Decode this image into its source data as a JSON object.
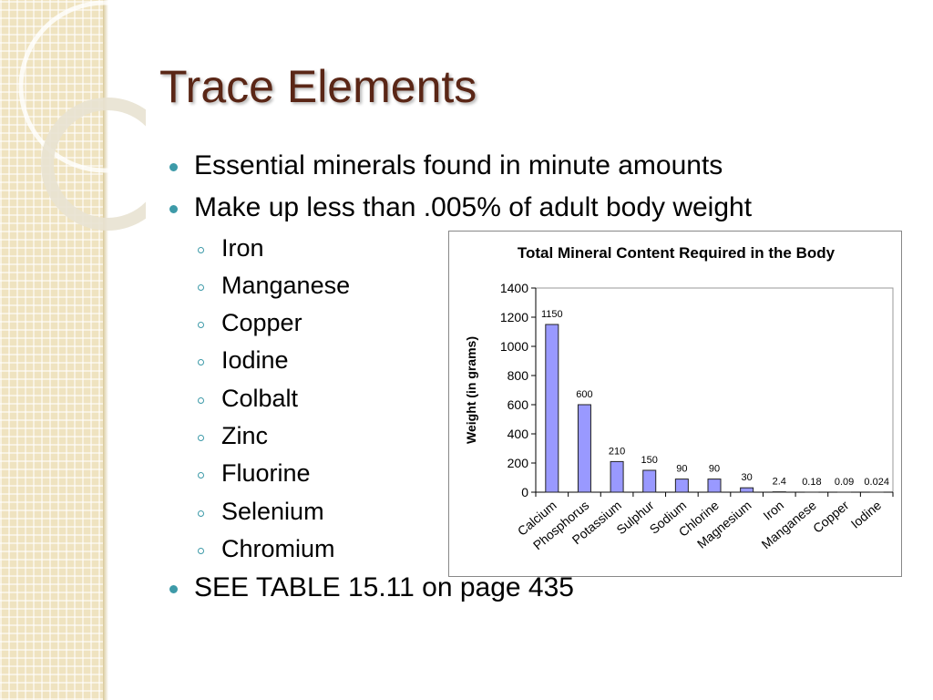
{
  "slide": {
    "title": "Trace Elements",
    "bullets": [
      "Essential minerals found in minute amounts",
      "Make up less than .005% of adult body weight",
      "SEE TABLE 15.11 on page 435"
    ],
    "sub_bullets": [
      "Iron",
      "Manganese",
      "Copper",
      "Iodine",
      "Colbalt",
      "Zinc",
      "Fluorine",
      "Selenium",
      "Chromium"
    ]
  },
  "chart_data": {
    "type": "bar",
    "title": "Total Mineral Content Required in the Body",
    "y_label": "Weight (in grams)",
    "categories": [
      "Calcium",
      "Phosphorus",
      "Potassium",
      "Sulphur",
      "Sodium",
      "Chlorine",
      "Magnesium",
      "Iron",
      "Manganese",
      "Copper",
      "Iodine"
    ],
    "values": [
      1150,
      600,
      210,
      150,
      90,
      90,
      30,
      2.4,
      0.18,
      0.09,
      0.024
    ],
    "color": "#9999ff",
    "ylim": [
      0,
      1400
    ],
    "yticks": [
      0,
      200,
      400,
      600,
      800,
      1000,
      1200,
      1400
    ],
    "grid": false
  }
}
